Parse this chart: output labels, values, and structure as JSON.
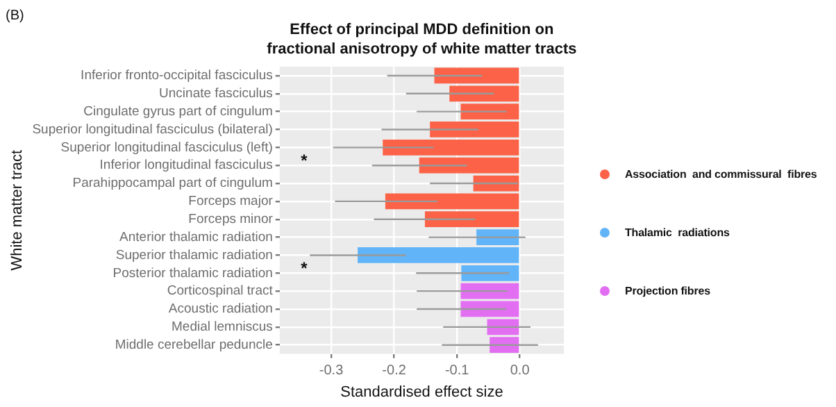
{
  "chart_data": {
    "type": "bar",
    "orientation": "horizontal",
    "title": "Effect of principal MDD definition on fractional anisotropy of white matter tracts",
    "xlabel": "Standardised effect size",
    "ylabel": "White matter tract",
    "categories": [
      "Inferior fronto-occipital fasciculus",
      "Uncinate fasciculus",
      "Cingulate gyrus part of cingulum",
      "Superior longitudinal fasciculus (bilateral)",
      "Superior longitudinal fasciculus (left)",
      "Inferior longitudinal fasciculus",
      "Parahippocampal part of cingulum",
      "Forceps major",
      "Forceps minor",
      "Anterior thalamic radiation",
      "Superior thalamic radiation",
      "Posterior thalamic radiation",
      "Corticospinal tract",
      "Acoustic radiation",
      "Medial lemniscus",
      "Middle cerebellar peduncle"
    ],
    "series": [
      {
        "name": "Association  and commissural  fibres",
        "color": "#fc6247",
        "values": [
          -0.136,
          -0.112,
          -0.094,
          -0.143,
          -0.218,
          -0.16,
          -0.074,
          -0.214,
          -0.151,
          null,
          null,
          null,
          null,
          null,
          null,
          null
        ],
        "errors": [
          [
            -0.211,
            -0.06
          ],
          [
            -0.181,
            -0.041
          ],
          [
            -0.164,
            -0.021
          ],
          [
            -0.22,
            -0.066
          ],
          [
            -0.297,
            -0.137
          ],
          [
            -0.235,
            -0.084
          ],
          [
            -0.143,
            -0.003
          ],
          [
            -0.294,
            -0.131
          ],
          [
            -0.232,
            -0.071
          ],
          null,
          null,
          null,
          null,
          null,
          null,
          null
        ]
      },
      {
        "name": "Thalamic  radiations",
        "color": "#62b4f8",
        "values": [
          null,
          null,
          null,
          null,
          null,
          null,
          null,
          null,
          null,
          -0.069,
          -0.258,
          -0.093,
          null,
          null,
          null,
          null
        ],
        "errors": [
          null,
          null,
          null,
          null,
          null,
          null,
          null,
          null,
          null,
          [
            -0.145,
            0.009
          ],
          [
            -0.334,
            -0.181
          ],
          [
            -0.165,
            -0.017
          ],
          null,
          null,
          null,
          null
        ]
      },
      {
        "name": "Projection fibres",
        "color": "#e26ef2",
        "values": [
          null,
          null,
          null,
          null,
          null,
          null,
          null,
          null,
          null,
          null,
          null,
          null,
          -0.094,
          -0.094,
          -0.052,
          -0.048
        ],
        "errors": [
          null,
          null,
          null,
          null,
          null,
          null,
          null,
          null,
          null,
          null,
          null,
          null,
          [
            -0.164,
            -0.02
          ],
          [
            -0.164,
            -0.022
          ],
          [
            -0.122,
            0.017
          ],
          [
            -0.124,
            0.029
          ]
        ]
      }
    ],
    "xlim": [
      -0.382,
      0.07
    ],
    "xticks": [
      -0.3,
      -0.2,
      -0.1,
      {
        "value": 0,
        "label": "0.0"
      }
    ],
    "grid": true,
    "legend": "right",
    "annotations": [
      "(B)",
      "*",
      "*"
    ]
  }
}
